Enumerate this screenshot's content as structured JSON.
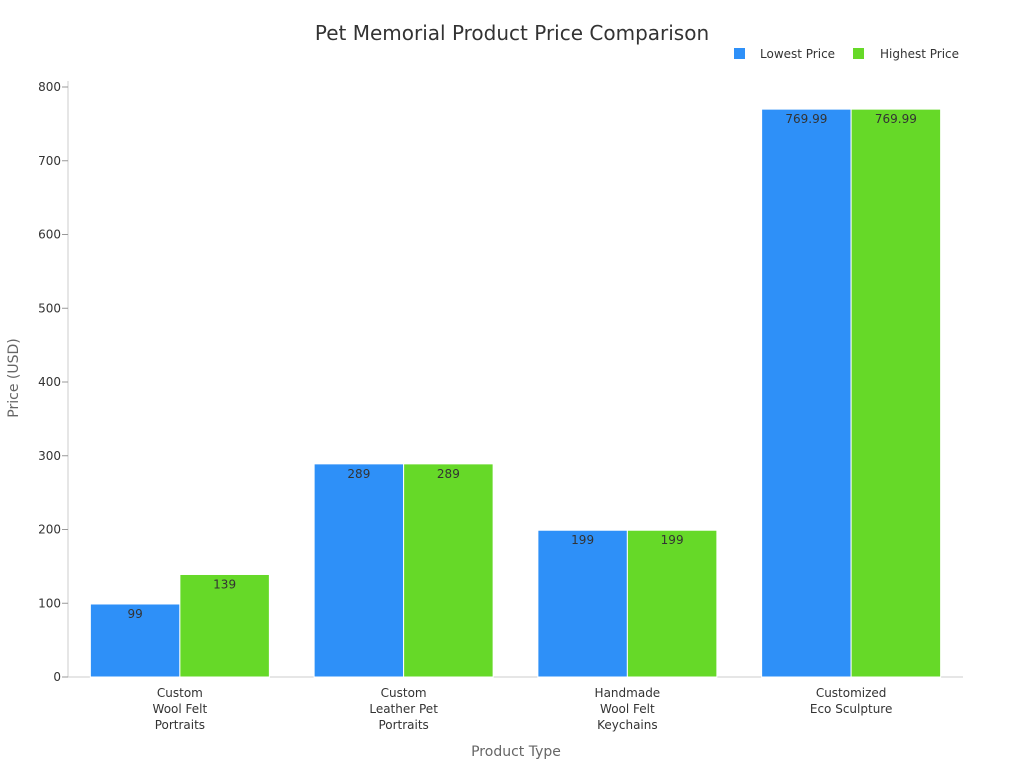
{
  "chart_data": {
    "type": "bar",
    "title": "Pet Memorial Product Price Comparison",
    "xlabel": "Product Type",
    "ylabel": "Price (USD)",
    "ylim": [
      0,
      800
    ],
    "yticks": [
      0,
      100,
      200,
      300,
      400,
      500,
      600,
      700,
      800
    ],
    "categories": [
      [
        "Custom",
        "Wool Felt",
        "Portraits"
      ],
      [
        "Custom",
        "Leather Pet",
        "Portraits"
      ],
      [
        "Handmade",
        "Wool Felt",
        "Keychains"
      ],
      [
        "Customized",
        "Eco Sculpture"
      ]
    ],
    "series": [
      {
        "name": "Lowest Price",
        "color": "#2e90f8",
        "values": [
          99,
          289,
          199,
          769.99
        ]
      },
      {
        "name": "Highest Price",
        "color": "#66d928",
        "values": [
          139,
          289,
          199,
          769.99
        ]
      }
    ],
    "grid": false,
    "legend": "top-right"
  }
}
